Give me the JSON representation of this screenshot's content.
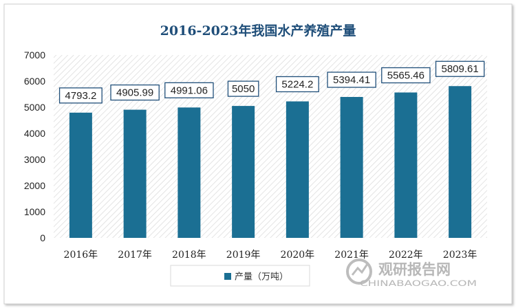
{
  "chart_data": {
    "type": "bar",
    "title": "2016-2023年我国水产养殖产量",
    "categories": [
      "2016年",
      "2017年",
      "2018年",
      "2019年",
      "2020年",
      "2021年",
      "2022年",
      "2023年"
    ],
    "series": [
      {
        "name": "产量（万吨）",
        "values": [
          4793.2,
          4905.99,
          4991.06,
          5050,
          5224.2,
          5394.41,
          5565.46,
          5809.61
        ],
        "labels": [
          "4793.2",
          "4905.99",
          "4991.06",
          "5050",
          "5224.2",
          "5394.41",
          "5565.46",
          "5809.61"
        ]
      }
    ],
    "ylim": [
      0,
      7000
    ],
    "yticks": [
      0,
      1000,
      2000,
      3000,
      4000,
      5000,
      6000,
      7000
    ],
    "legend_position": "bottom",
    "grid": false,
    "colors": {
      "bar": "#1b6f93",
      "title": "#1f4e79",
      "label_border": "#1f4e79"
    }
  },
  "watermark": {
    "cn": "观研报告网",
    "en": "CHINABAOGAO.COM"
  }
}
